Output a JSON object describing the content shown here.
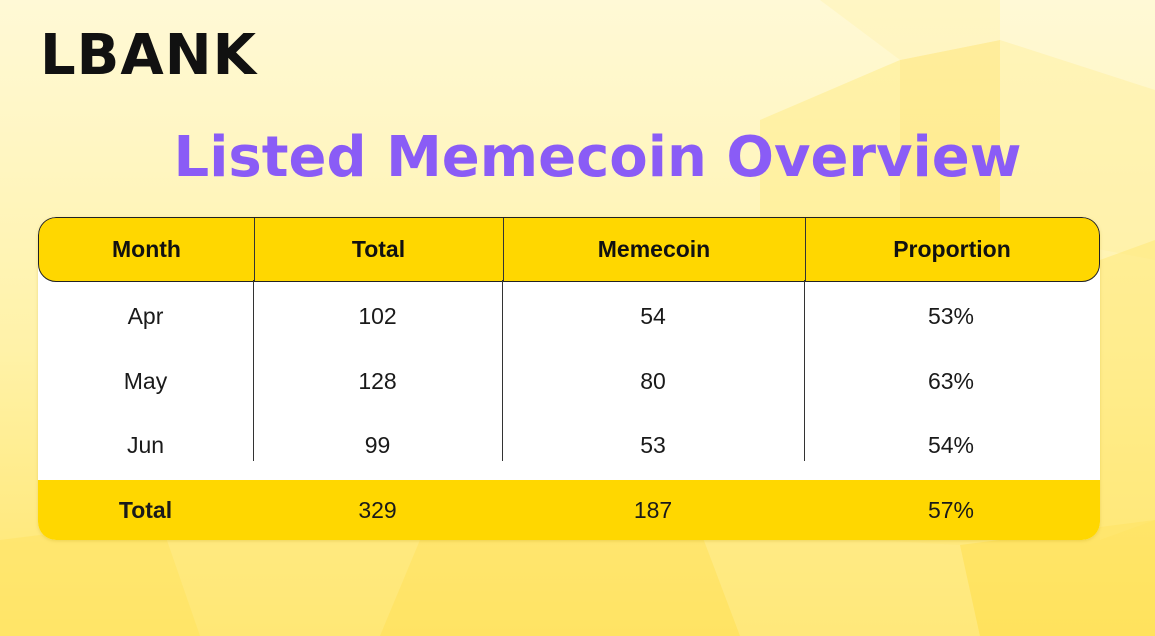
{
  "brand": {
    "logo_text": "LBANK"
  },
  "colors": {
    "accent": "#ffd700",
    "title": "#8a5cf6"
  },
  "chart_data": {
    "type": "table",
    "title": "Listed Memecoin Overview",
    "columns": [
      "Month",
      "Total",
      "Memecoin",
      "Proportion"
    ],
    "rows": [
      {
        "month": "Apr",
        "total": "102",
        "memecoin": "54",
        "proportion": "53%"
      },
      {
        "month": "May",
        "total": "128",
        "memecoin": "80",
        "proportion": "63%"
      },
      {
        "month": "Jun",
        "total": "99",
        "memecoin": "53",
        "proportion": "54%"
      }
    ],
    "footer": {
      "label": "Total",
      "total": "329",
      "memecoin": "187",
      "proportion": "57%"
    }
  }
}
